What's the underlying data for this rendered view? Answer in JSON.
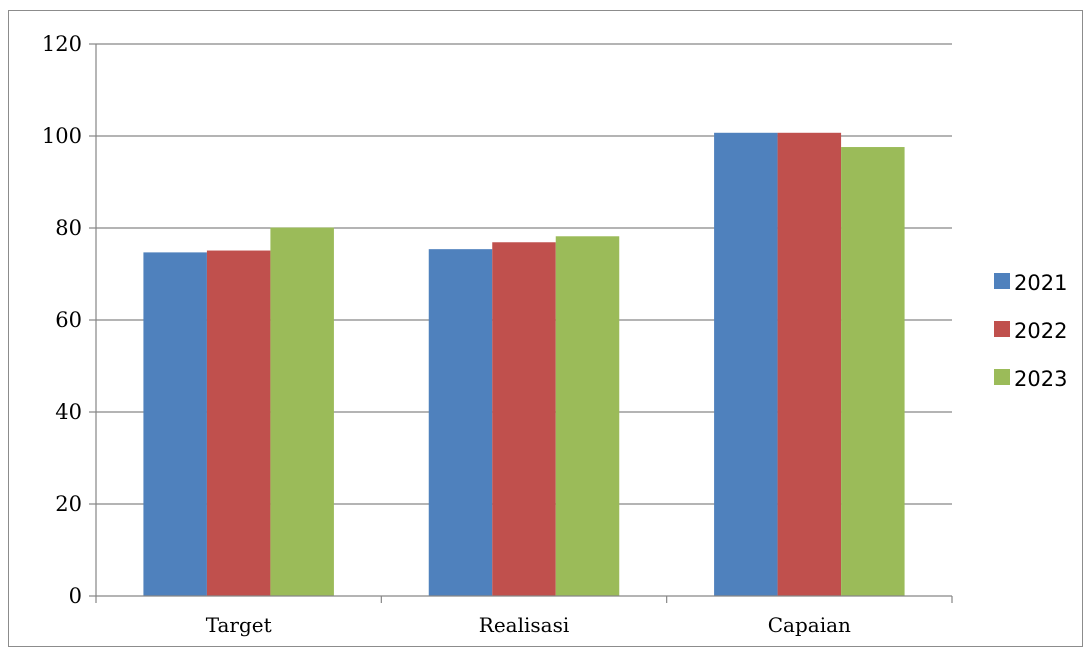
{
  "chart_data": {
    "type": "bar",
    "categories": [
      "Target",
      "Realisasi",
      "Capaian"
    ],
    "series": [
      {
        "name": "2021",
        "color": "#4f81bd",
        "values": [
          74.7,
          75.4,
          100.7
        ]
      },
      {
        "name": "2022",
        "color": "#c0504d",
        "values": [
          75.1,
          76.9,
          100.7
        ]
      },
      {
        "name": "2023",
        "color": "#9bbb59",
        "values": [
          80.1,
          78.2,
          97.6
        ]
      }
    ],
    "ylim": [
      0,
      120
    ],
    "yticks": [
      "0",
      "20",
      "40",
      "60",
      "80",
      "100",
      "120"
    ],
    "grid": true,
    "legend_position": "right"
  }
}
